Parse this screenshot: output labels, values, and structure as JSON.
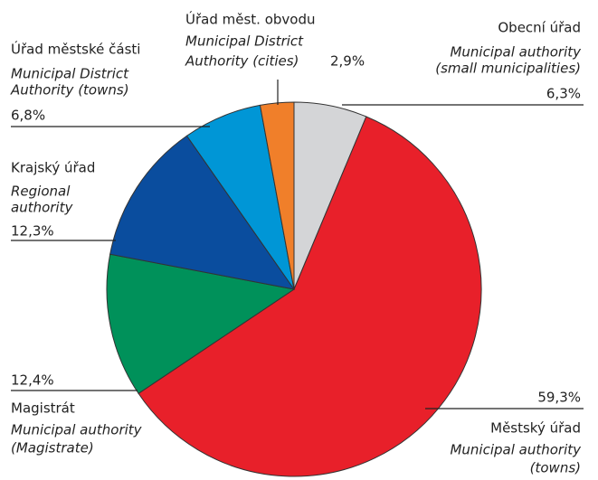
{
  "chart_data": {
    "type": "pie",
    "categories": [
      "Obecní úřad",
      "Městský úřad",
      "Magistrát",
      "Krajský úřad",
      "Úřad městské části",
      "Úřad měst. obvodu"
    ],
    "english_labels": [
      [
        "Municipal authority",
        "(small municipalities)"
      ],
      [
        "Municipal authority",
        "(towns)"
      ],
      [
        "Municipal authority",
        "(Magistrate)"
      ],
      [
        "Regional",
        "authority"
      ],
      [
        "Municipal District",
        "Authority (towns)"
      ],
      [
        "Municipal District",
        "Authority (cities)"
      ]
    ],
    "values": [
      6.3,
      59.3,
      12.4,
      12.3,
      6.8,
      2.9
    ],
    "value_labels": [
      "6,3%",
      "59,3%",
      "12,4%",
      "12,3%",
      "6,8%",
      "2,9%"
    ],
    "colors": [
      "#d4d5d7",
      "#e8202a",
      "#00915a",
      "#0a4d9e",
      "#0096d6",
      "#f07f2a"
    ]
  }
}
